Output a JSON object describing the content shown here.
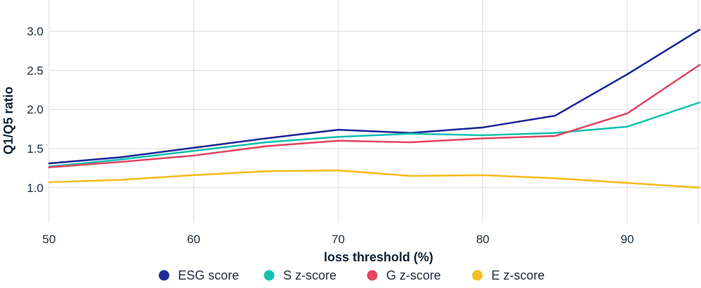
{
  "chart_data": {
    "type": "line",
    "title": "",
    "xlabel": "loss threshold (%)",
    "ylabel": "Q1/Q5 ratio",
    "xlim": [
      50,
      95
    ],
    "ylim": [
      0.55,
      3.4
    ],
    "xticks": [
      50,
      60,
      70,
      80,
      90
    ],
    "yticks": [
      1.0,
      1.5,
      2.0,
      2.5,
      3.0
    ],
    "ytick_labels": [
      "1.0",
      "1.5",
      "2.0",
      "2.5",
      "3.0"
    ],
    "grid": true,
    "legend_position": "bottom",
    "x": [
      50,
      55,
      60,
      65,
      70,
      75,
      80,
      85,
      90,
      95
    ],
    "series": [
      {
        "name": "ESG score",
        "color": "#1f2a9b",
        "values": [
          1.31,
          1.39,
          1.51,
          1.63,
          1.74,
          1.7,
          1.77,
          1.92,
          2.45,
          3.02
        ]
      },
      {
        "name": "S z-score",
        "color": "#14c1b0",
        "values": [
          1.27,
          1.36,
          1.47,
          1.58,
          1.65,
          1.69,
          1.67,
          1.7,
          1.78,
          2.09
        ]
      },
      {
        "name": "G z-score",
        "color": "#e34664",
        "values": [
          1.26,
          1.33,
          1.41,
          1.53,
          1.6,
          1.58,
          1.63,
          1.66,
          1.95,
          2.57
        ]
      },
      {
        "name": "E z-score",
        "color": "#f5bd22",
        "values": [
          1.07,
          1.1,
          1.16,
          1.21,
          1.22,
          1.15,
          1.16,
          1.12,
          1.06,
          1.0
        ]
      }
    ]
  }
}
